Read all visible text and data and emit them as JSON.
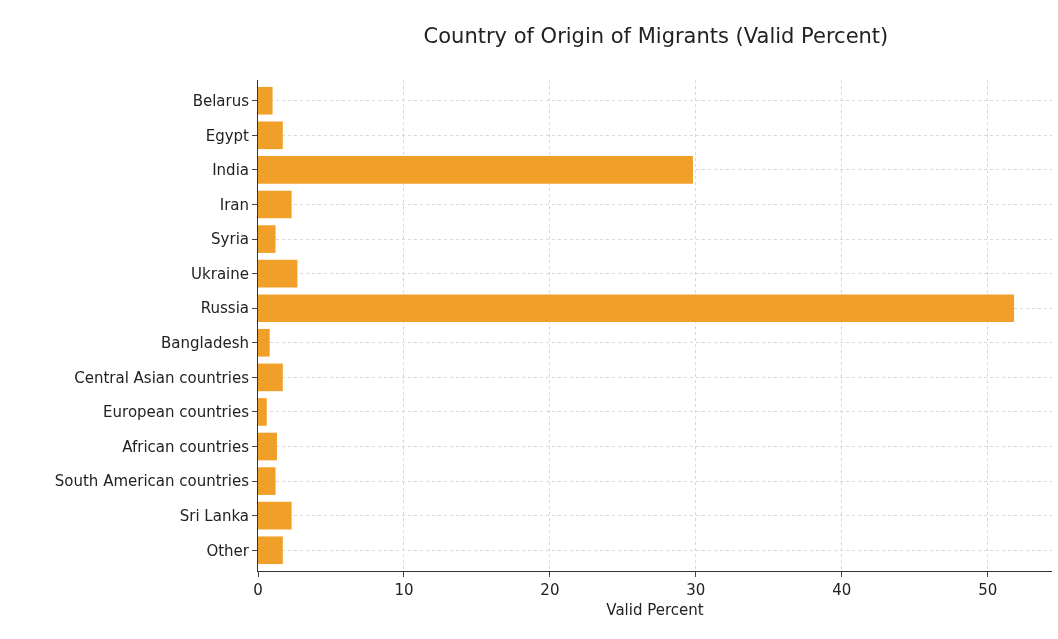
{
  "chart_data": {
    "type": "bar",
    "orientation": "horizontal",
    "title": "Country of Origin of Migrants (Valid Percent)",
    "xlabel": "Valid Percent",
    "categories": [
      "Belarus",
      "Egypt",
      "India",
      "Iran",
      "Syria",
      "Ukraine",
      "Russia",
      "Bangladesh",
      "Central Asian countries",
      "European countries",
      "African countries",
      "South American countries",
      "Sri Lanka",
      "Other"
    ],
    "values": [
      1.0,
      1.7,
      29.8,
      2.3,
      1.2,
      2.7,
      51.8,
      0.8,
      1.7,
      0.6,
      1.3,
      1.2,
      2.3,
      1.7
    ],
    "color": "#f0a028",
    "xlim": [
      0,
      54.4
    ],
    "xticks": [
      0,
      10,
      20,
      30,
      40,
      50
    ],
    "grid": true
  }
}
